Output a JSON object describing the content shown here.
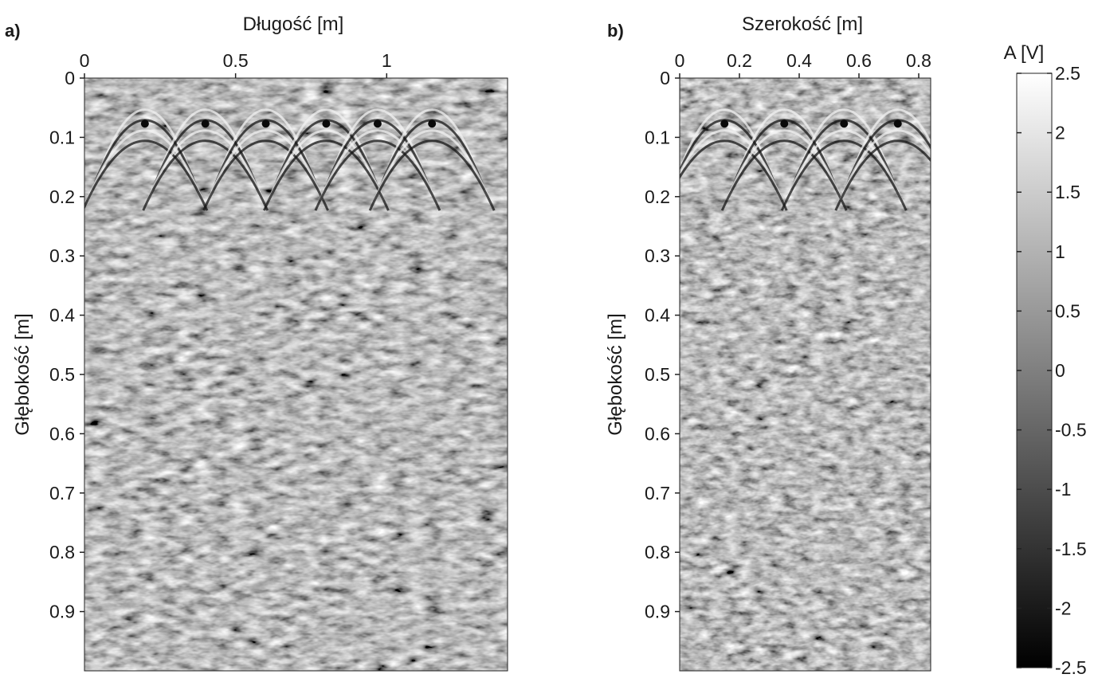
{
  "chart_data": [
    {
      "type": "heatmap",
      "panel_label": "a)",
      "title": "",
      "xlabel": "Długość [m]",
      "ylabel": "Głębokość [m]",
      "xlim": [
        0,
        1.4
      ],
      "ylim": [
        0,
        1.0
      ],
      "y_reversed": true,
      "xticks": [
        0,
        0.5,
        1
      ],
      "xtick_labels": [
        "0",
        "0.5",
        "1"
      ],
      "yticks": [
        0,
        0.1,
        0.2,
        0.3,
        0.4,
        0.5,
        0.6,
        0.7,
        0.8,
        0.9
      ],
      "ytick_labels": [
        "0",
        "0.1",
        "0.2",
        "0.3",
        "0.4",
        "0.5",
        "0.6",
        "0.7",
        "0.8",
        "0.9"
      ],
      "x_axis_position": "top",
      "colormap": "gray",
      "hyperbola_apex_positions_m": [
        0.2,
        0.4,
        0.6,
        0.8,
        0.97,
        1.15
      ],
      "hyperbola_apex_depth_m": 0.05
    },
    {
      "type": "heatmap",
      "panel_label": "b)",
      "title": "",
      "xlabel": "Szerokość [m]",
      "ylabel": "Głębokość [m]",
      "xlim": [
        0,
        0.84
      ],
      "ylim": [
        0,
        1.0
      ],
      "y_reversed": true,
      "xticks": [
        0,
        0.2,
        0.4,
        0.6,
        0.8
      ],
      "xtick_labels": [
        "0",
        "0.2",
        "0.4",
        "0.6",
        "0.8"
      ],
      "yticks": [
        0,
        0.1,
        0.2,
        0.3,
        0.4,
        0.5,
        0.6,
        0.7,
        0.8,
        0.9
      ],
      "ytick_labels": [
        "0",
        "0.1",
        "0.2",
        "0.3",
        "0.4",
        "0.5",
        "0.6",
        "0.7",
        "0.8",
        "0.9"
      ],
      "x_axis_position": "top",
      "colormap": "gray",
      "hyperbola_apex_positions_m": [
        0.15,
        0.35,
        0.55,
        0.73
      ],
      "hyperbola_apex_depth_m": 0.05
    }
  ],
  "colorbar": {
    "label": "A [V]",
    "range": [
      -2.5,
      2.5
    ],
    "ticks": [
      2.5,
      2,
      1.5,
      1,
      0.5,
      0,
      -0.5,
      -1,
      -1.5,
      -2,
      -2.5
    ],
    "tick_labels": [
      "2.5",
      "2",
      "1.5",
      "1",
      "0.5",
      "0",
      "-0.5",
      "-1",
      "-1.5",
      "-2",
      "-2.5"
    ],
    "color_high": "#ffffff",
    "color_low": "#000000"
  }
}
